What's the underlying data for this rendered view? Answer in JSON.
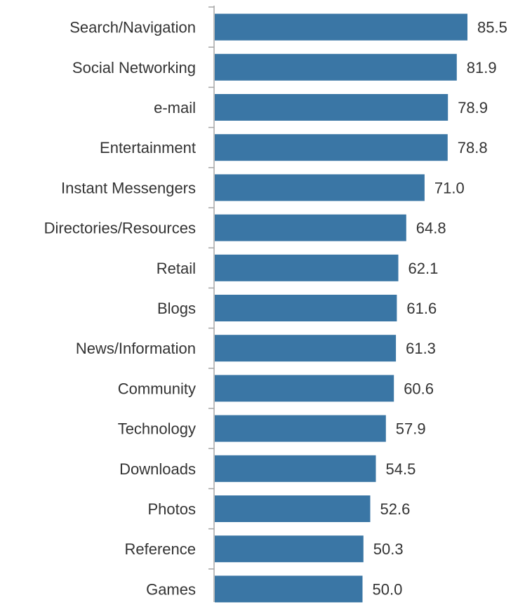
{
  "colors": {
    "bar": "#3A76A5",
    "axis": "#A6A6A6",
    "text": "#333333"
  },
  "chart_data": {
    "type": "bar",
    "orientation": "horizontal",
    "categories": [
      "Search/Navigation",
      "Social Networking",
      "e-mail",
      "Entertainment",
      "Instant Messengers",
      "Directories/Resources",
      "Retail",
      "Blogs",
      "News/Information",
      "Community",
      "Technology",
      "Downloads",
      "Photos",
      "Reference",
      "Games"
    ],
    "values": [
      85.5,
      81.9,
      78.9,
      78.8,
      71.0,
      64.8,
      62.1,
      61.6,
      61.3,
      60.6,
      57.9,
      54.5,
      52.6,
      50.3,
      50.0
    ],
    "value_labels": [
      "85.5",
      "81.9",
      "78.9",
      "78.8",
      "71.0",
      "64.8",
      "62.1",
      "61.6",
      "61.3",
      "60.6",
      "57.9",
      "54.5",
      "52.6",
      "50.3",
      "50.0"
    ],
    "xlim": [
      0,
      85.5
    ],
    "grid": false,
    "legend": "none"
  }
}
